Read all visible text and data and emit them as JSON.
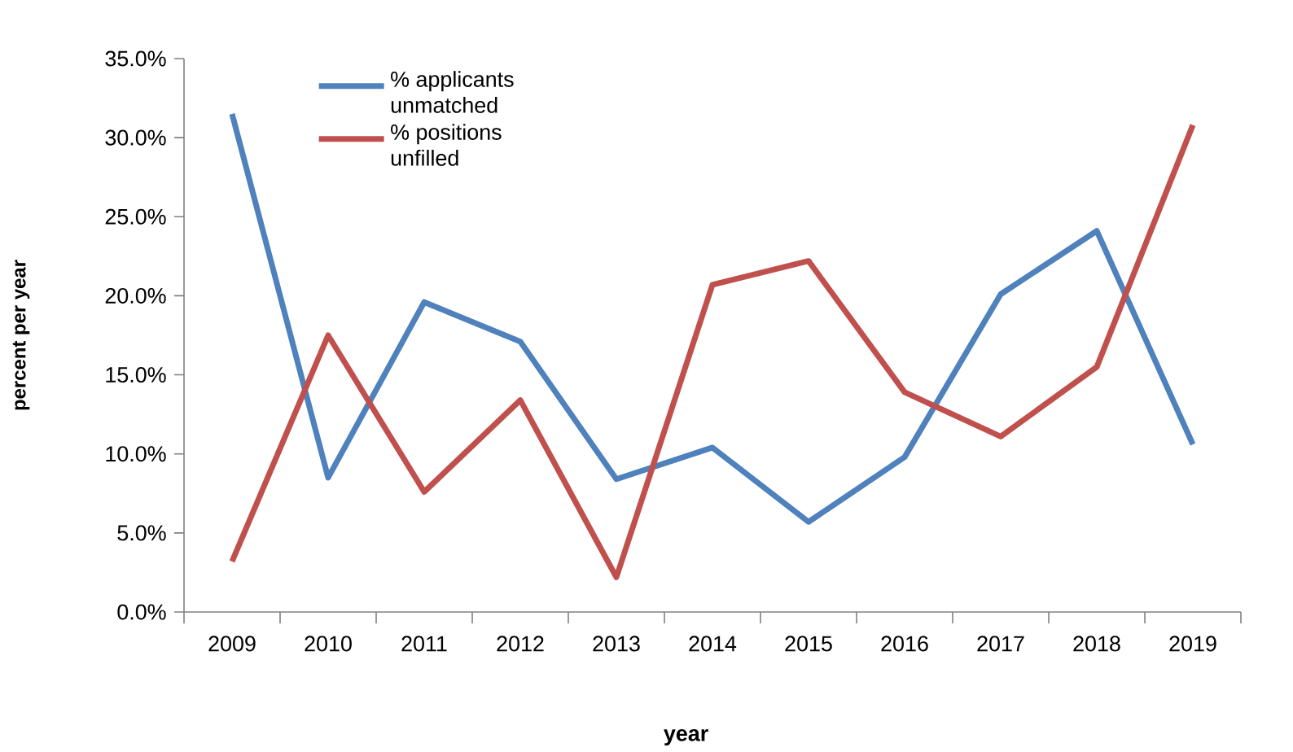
{
  "chart_data": {
    "type": "line",
    "xlabel": "year",
    "ylabel": "percent per year",
    "categories": [
      "2009",
      "2010",
      "2011",
      "2012",
      "2013",
      "2014",
      "2015",
      "2016",
      "2017",
      "2018",
      "2019"
    ],
    "series": [
      {
        "name": "% applicants unmatched",
        "color": "#4f81bd",
        "values": [
          31.5,
          8.5,
          19.6,
          17.1,
          8.4,
          10.4,
          5.7,
          9.8,
          20.1,
          24.1,
          10.6
        ]
      },
      {
        "name": "% positions unfilled",
        "color": "#c0504d",
        "values": [
          3.2,
          17.5,
          7.6,
          13.4,
          2.2,
          20.7,
          22.2,
          13.9,
          11.1,
          15.5,
          30.8
        ]
      }
    ],
    "ylim": [
      0,
      35
    ],
    "yticks": [
      {
        "value": 0,
        "label": "0.0%"
      },
      {
        "value": 5,
        "label": "5.0%"
      },
      {
        "value": 10,
        "label": "10.0%"
      },
      {
        "value": 15,
        "label": "15.0%"
      },
      {
        "value": 20,
        "label": "20.0%"
      },
      {
        "value": 25,
        "label": "25.0%"
      },
      {
        "value": 30,
        "label": "30.0%"
      },
      {
        "value": 35,
        "label": "35.0%"
      }
    ],
    "grid": false,
    "legend": "top left",
    "marker": "none",
    "line_style": "solid"
  }
}
